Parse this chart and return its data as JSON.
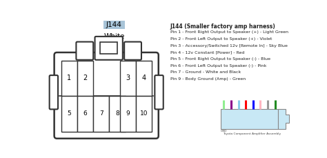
{
  "title": "J144 (Smaller factory amp harness)",
  "connector_label": "J144",
  "connector_color_label": "White",
  "pin_info": [
    "Pin 1 - Front Right Output to Speaker (+) - Light Green",
    "Pin 2 - Front Left Output to Speaker (+) - Violet",
    "Pin 3 - Accessory/Switched 12v [Remote In] - Sky Blue",
    "Pin 4 - 12v Constant [Power] - Red",
    "Pin 5 - Front Right Output to Speaker (-) - Blue",
    "Pin 6 - Front Left Output to Speaker (-) - Pink",
    "Pin 7 - Ground - White and Black",
    "Pin 9 - Body Ground (Amp) - Green"
  ],
  "wire_colors": [
    "#90EE90",
    "#8B008B",
    "#87CEEB",
    "#FF0000",
    "#0000FF",
    "#FFB6C1",
    "#999999",
    "#228B22"
  ],
  "background_color": "#ffffff",
  "text_color": "#222222"
}
